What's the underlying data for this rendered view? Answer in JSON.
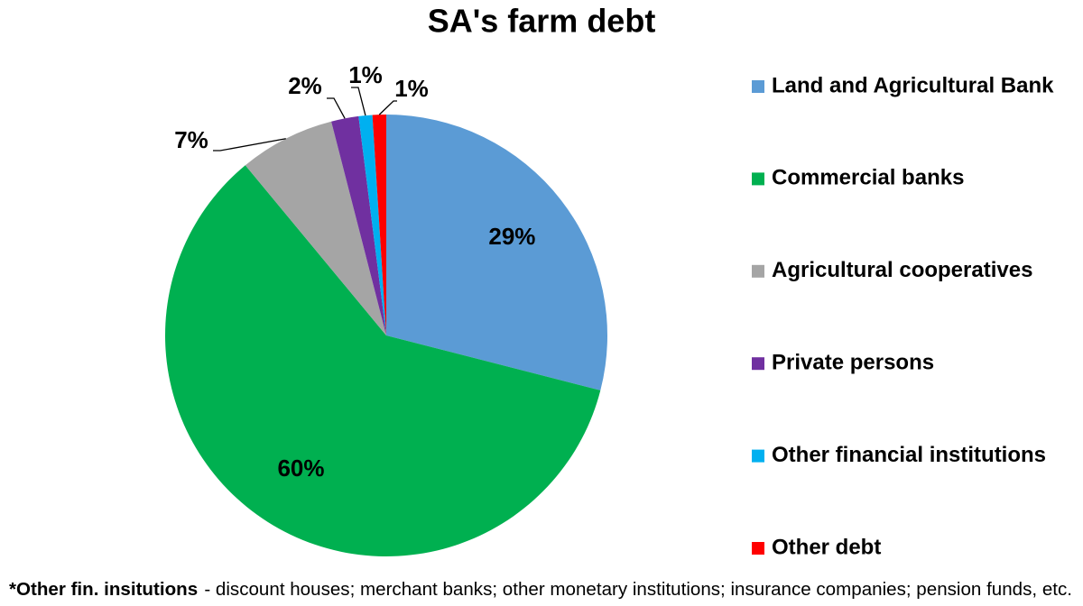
{
  "chart_data": {
    "type": "pie",
    "title": "SA's farm debt",
    "categories": [
      "Land and Agricultural Bank",
      "Commercial banks",
      "Agricultural cooperatives",
      "Private persons",
      "Other financial institutions",
      "Other debt"
    ],
    "values": [
      29,
      60,
      7,
      2,
      1,
      1
    ],
    "value_labels": [
      "29%",
      "60%",
      "7%",
      "2%",
      "1%",
      "1%"
    ],
    "colors": [
      "#5b9bd5",
      "#00b050",
      "#a5a5a5",
      "#7030a0",
      "#00b0f0",
      "#ff0000"
    ],
    "legend": "right"
  },
  "footnote": {
    "lead": "*Other fin. insitutions",
    "text": "- discount houses; merchant banks; other monetary institutions; insurance companies; pension funds, etc."
  }
}
